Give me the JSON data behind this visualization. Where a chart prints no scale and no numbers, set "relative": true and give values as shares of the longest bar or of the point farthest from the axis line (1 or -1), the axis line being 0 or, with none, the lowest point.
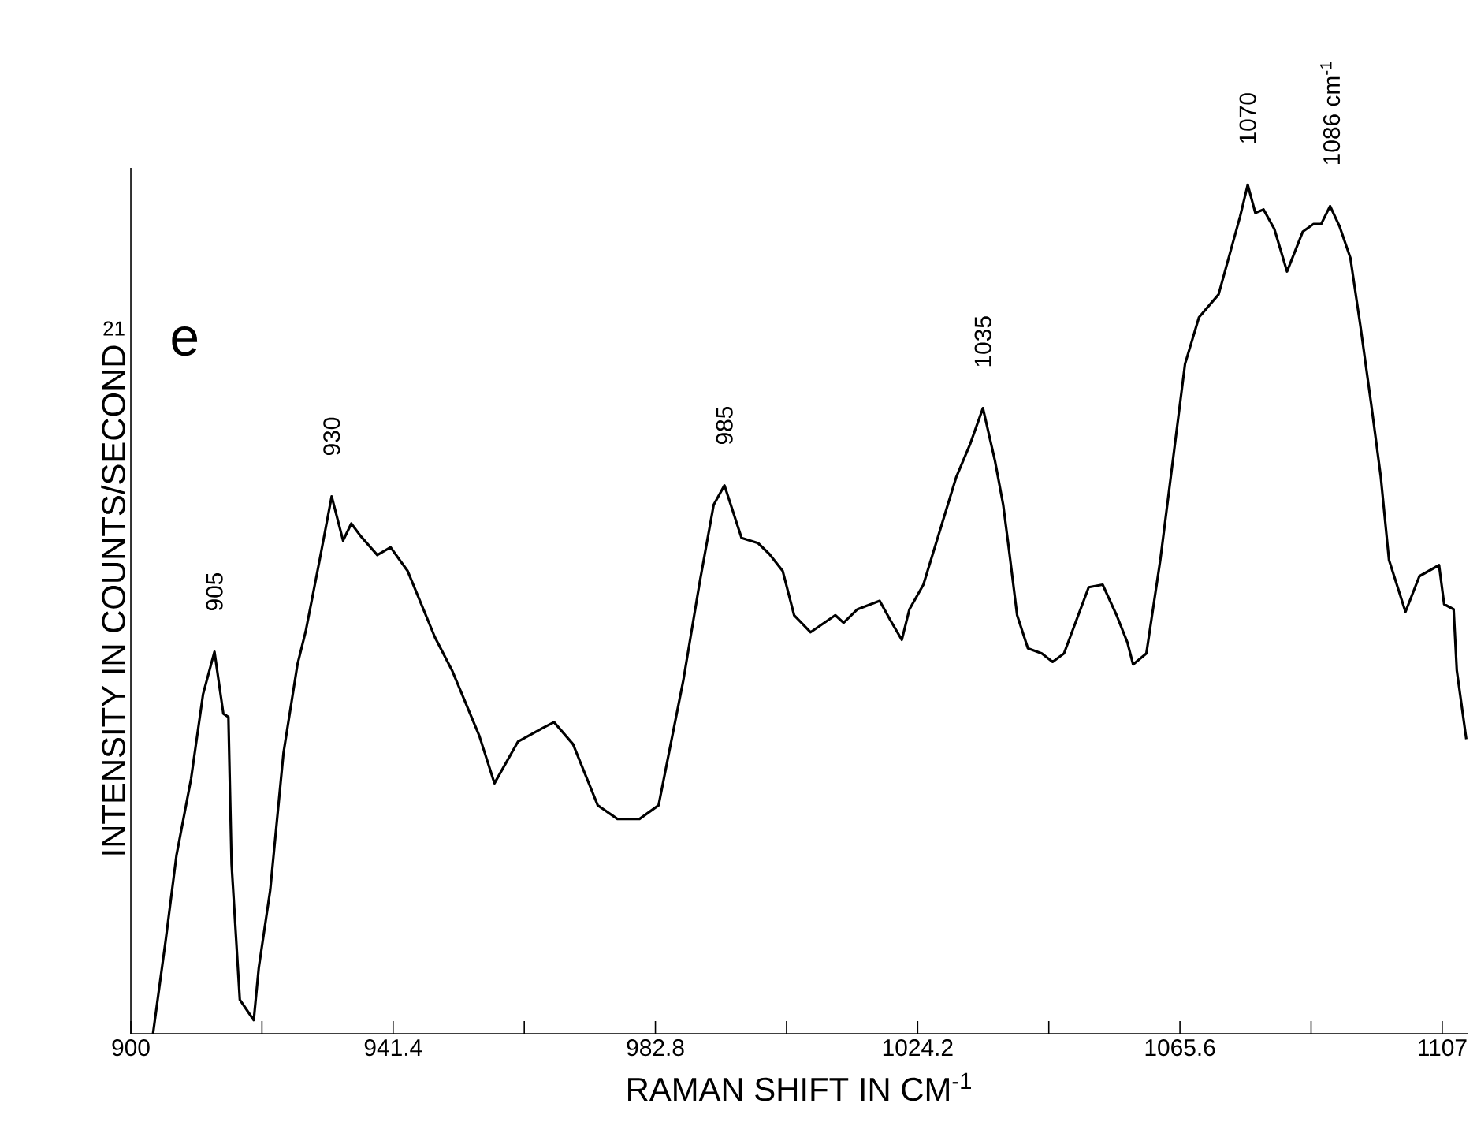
{
  "chart_data": {
    "type": "line",
    "title": "e",
    "xlabel": "RAMAN SHIFT IN CM$^{-1}$",
    "ylabel": "INTENSITY IN COUNTS/SECOND",
    "relative": true,
    "color": "#000000",
    "xlim": [
      900,
      1111
    ],
    "xticks": [
      900,
      {
        "value": 920.7,
        "label": null
      },
      941.4,
      {
        "value": 962.1,
        "label": null
      },
      982.8,
      {
        "value": 1003.5,
        "label": null
      },
      1024.2,
      {
        "value": 1044.9,
        "label": null
      },
      1065.6,
      {
        "value": 1086.3,
        "label": null
      },
      1107
    ],
    "x": [
      903.5,
      905.5,
      907.2,
      909.5,
      911.4,
      913.2,
      914.6,
      915.4,
      915.9,
      917.2,
      919.4,
      920.2,
      922.0,
      924.1,
      926.3,
      927.6,
      929.8,
      931.7,
      933.5,
      934.8,
      936.3,
      938.9,
      941.0,
      943.7,
      948.0,
      950.7,
      955.0,
      957.4,
      961.1,
      965.0,
      966.8,
      969.8,
      973.7,
      976.8,
      980.3,
      983.3,
      987.2,
      989.8,
      992.0,
      993.7,
      996.4,
      999.0,
      1000.8,
      1002.9,
      1004.7,
      1007.3,
      1011.2,
      1012.5,
      1014.7,
      1018.2,
      1019.9,
      1021.7,
      1022.9,
      1025.1,
      1030.3,
      1032.5,
      1034.5,
      1036.4,
      1037.7,
      1038.6,
      1039.9,
      1041.6,
      1043.8,
      1045.5,
      1047.3,
      1051.2,
      1053.4,
      1055.6,
      1057.3,
      1058.2,
      1060.3,
      1062.5,
      1066.4,
      1068.6,
      1071.7,
      1075.1,
      1076.3,
      1077.5,
      1078.8,
      1080.5,
      1082.5,
      1085.0,
      1086.7,
      1087.9,
      1089.3,
      1090.8,
      1092.5,
      1094.1,
      1095.8,
      1097.3,
      1098.6,
      1101.2,
      1103.4,
      1106.5,
      1107.3,
      1108.8,
      1109.3,
      1110.8
    ],
    "values": [
      0.0,
      0.11,
      0.21,
      0.3,
      0.4,
      0.45,
      0.377,
      0.373,
      0.2,
      0.04,
      0.016,
      0.078,
      0.169,
      0.331,
      0.435,
      0.474,
      0.558,
      0.633,
      0.581,
      0.601,
      0.586,
      0.564,
      0.573,
      0.545,
      0.467,
      0.428,
      0.351,
      0.295,
      0.344,
      0.36,
      0.367,
      0.341,
      0.269,
      0.253,
      0.253,
      0.269,
      0.416,
      0.532,
      0.623,
      0.646,
      0.584,
      0.578,
      0.565,
      0.545,
      0.493,
      0.473,
      0.493,
      0.484,
      0.5,
      0.51,
      0.487,
      0.464,
      0.5,
      0.529,
      0.656,
      0.695,
      0.737,
      0.675,
      0.623,
      0.571,
      0.493,
      0.454,
      0.448,
      0.438,
      0.448,
      0.526,
      0.529,
      0.493,
      0.461,
      0.435,
      0.448,
      0.558,
      0.789,
      0.844,
      0.871,
      0.963,
      1.0,
      0.967,
      0.971,
      0.948,
      0.898,
      0.945,
      0.954,
      0.954,
      0.975,
      0.951,
      0.914,
      0.833,
      0.741,
      0.656,
      0.558,
      0.497,
      0.539,
      0.552,
      0.506,
      0.5,
      0.428,
      0.347
    ],
    "annotations": [
      "21",
      {
        "text": "905",
        "x": 913.2,
        "y": 0.45
      },
      {
        "text": "930",
        "x": 931.7,
        "y": 0.633
      },
      {
        "text": "985",
        "x": 993.7,
        "y": 0.646
      },
      {
        "text": "1035",
        "x": 1034.5,
        "y": 0.737
      },
      {
        "text": "1070",
        "x": 1076.3,
        "y": 1.0
      },
      {
        "text": "1086 cm$^{-1}$",
        "x": 1089.3,
        "y": 0.975
      }
    ]
  }
}
